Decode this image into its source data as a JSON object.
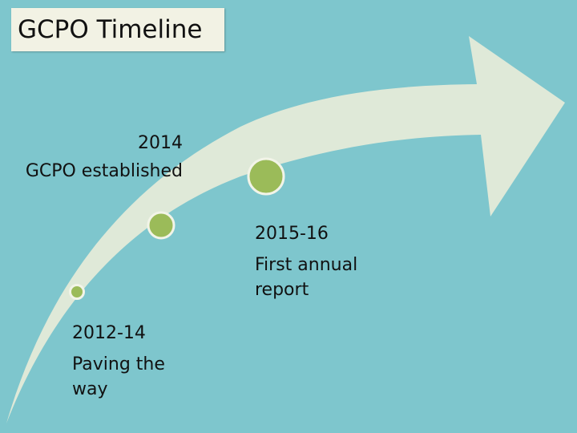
{
  "title": "GCPO Timeline",
  "colors": {
    "background": "#7ec6cd",
    "arrow_fill": "#dfe9d8",
    "marker_fill": "#9bbb59",
    "marker_ring": "#f2f4e8",
    "title_bg": "#f2f2e4"
  },
  "milestones": [
    {
      "year": "2012-14",
      "description": "Paving the way"
    },
    {
      "year": "2014",
      "description": "GCPO established"
    },
    {
      "year": "2015-16",
      "description": "First annual report"
    }
  ]
}
